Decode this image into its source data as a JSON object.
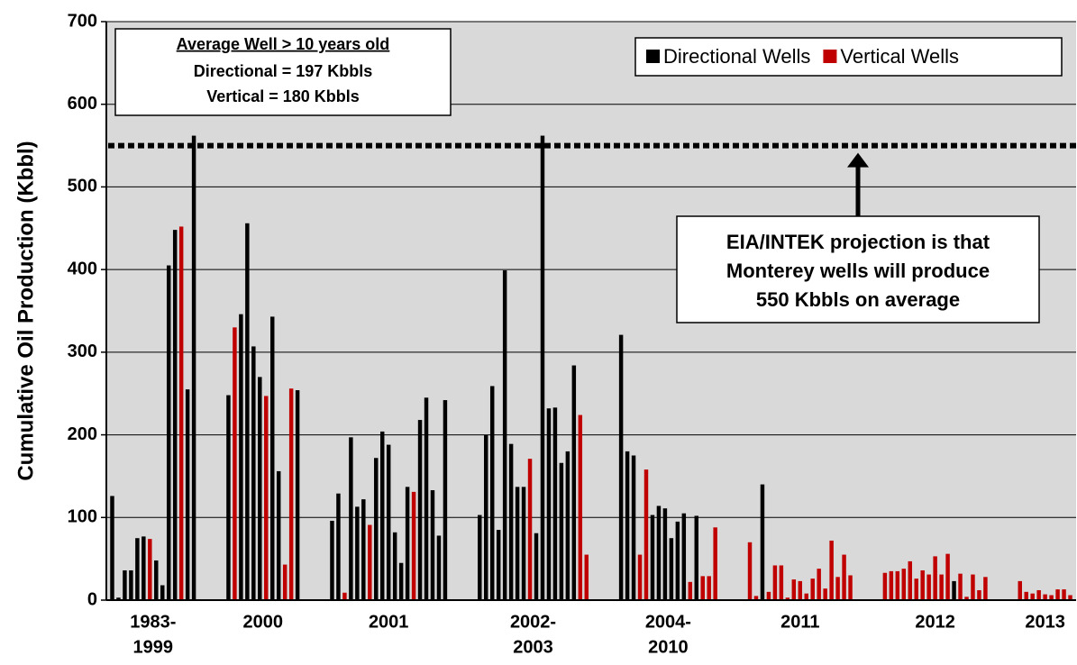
{
  "chart_data": {
    "type": "bar",
    "ylabel": "Cumulative Oil Production (Kbbl)",
    "ylim": [
      0,
      700
    ],
    "yticks": [
      0,
      100,
      200,
      300,
      400,
      500,
      600,
      700
    ],
    "grid": true,
    "legend": "upper right",
    "series": [
      {
        "name": "Directional Wells",
        "color": "#000000"
      },
      {
        "name": "Vertical Wells",
        "color": "#c00000"
      }
    ],
    "groups": [
      {
        "label": [
          "1983-",
          "1999"
        ],
        "directional": [
          126,
          3,
          36,
          36,
          75,
          77,
          null,
          48,
          18,
          405,
          448,
          null,
          255,
          562
        ],
        "vertical": [
          null,
          null,
          null,
          null,
          null,
          null,
          74,
          null,
          null,
          null,
          null,
          452,
          null,
          null
        ]
      },
      {
        "label": [
          "2000"
        ],
        "directional": [
          248,
          null,
          346,
          456,
          307,
          270,
          null,
          343,
          156,
          null,
          null,
          254
        ],
        "vertical": [
          null,
          330,
          null,
          null,
          null,
          null,
          247,
          null,
          null,
          43,
          256,
          null
        ]
      },
      {
        "label": [
          "2001"
        ],
        "directional": [
          96,
          129,
          null,
          197,
          113,
          122,
          null,
          172,
          204,
          188,
          82,
          45,
          137,
          null,
          218,
          245,
          133,
          78,
          242
        ],
        "vertical": [
          null,
          null,
          9,
          null,
          null,
          null,
          91,
          null,
          null,
          null,
          null,
          null,
          null,
          131,
          null,
          null,
          null,
          null,
          null
        ]
      },
      {
        "label": [
          "2002-",
          "2003"
        ],
        "directional": [
          103,
          200,
          259,
          85,
          399,
          189,
          137,
          137,
          null,
          81,
          562,
          232,
          233,
          166,
          180,
          284,
          null,
          null
        ],
        "vertical": [
          null,
          null,
          null,
          null,
          null,
          null,
          null,
          null,
          171,
          null,
          null,
          null,
          null,
          null,
          null,
          null,
          224,
          55
        ]
      },
      {
        "label": [
          "2004-",
          "2010"
        ],
        "directional": [
          321,
          180,
          175,
          null,
          null,
          103,
          114,
          111,
          75,
          95,
          105,
          null,
          102,
          null,
          null,
          null
        ],
        "vertical": [
          null,
          null,
          null,
          55,
          158,
          null,
          null,
          null,
          null,
          null,
          null,
          22,
          null,
          29,
          29,
          88
        ]
      },
      {
        "label": [
          "2011"
        ],
        "directional": [
          null,
          null,
          140,
          null,
          null,
          null,
          null,
          null,
          null,
          null,
          null,
          null,
          null,
          null,
          null,
          null,
          null
        ],
        "vertical": [
          70,
          5,
          null,
          10,
          42,
          42,
          3,
          25,
          23,
          8,
          26,
          38,
          14,
          72,
          28,
          55,
          30
        ]
      },
      {
        "label": [
          "2012"
        ],
        "directional": [
          null,
          null,
          null,
          null,
          null,
          null,
          null,
          null,
          null,
          null,
          null,
          23,
          null,
          null,
          null,
          null,
          null
        ],
        "vertical": [
          33,
          35,
          35,
          38,
          47,
          26,
          36,
          31,
          53,
          31,
          56,
          null,
          32,
          4,
          31,
          12,
          28
        ]
      },
      {
        "label": [
          "2013"
        ],
        "directional": [
          null,
          null,
          null,
          null,
          null,
          null,
          null,
          null,
          null
        ],
        "vertical": [
          23,
          10,
          8,
          12,
          7,
          6,
          13,
          13,
          6
        ]
      }
    ],
    "reference_line": 550,
    "info_box": {
      "title": "Average Well > 10 years old",
      "lines": [
        "Directional = 197 Kbbls",
        "Vertical = 180 Kbbls"
      ]
    },
    "annotation": [
      "EIA/INTEK projection is that",
      "Monterey wells will produce",
      "550 Kbbls on average"
    ]
  }
}
